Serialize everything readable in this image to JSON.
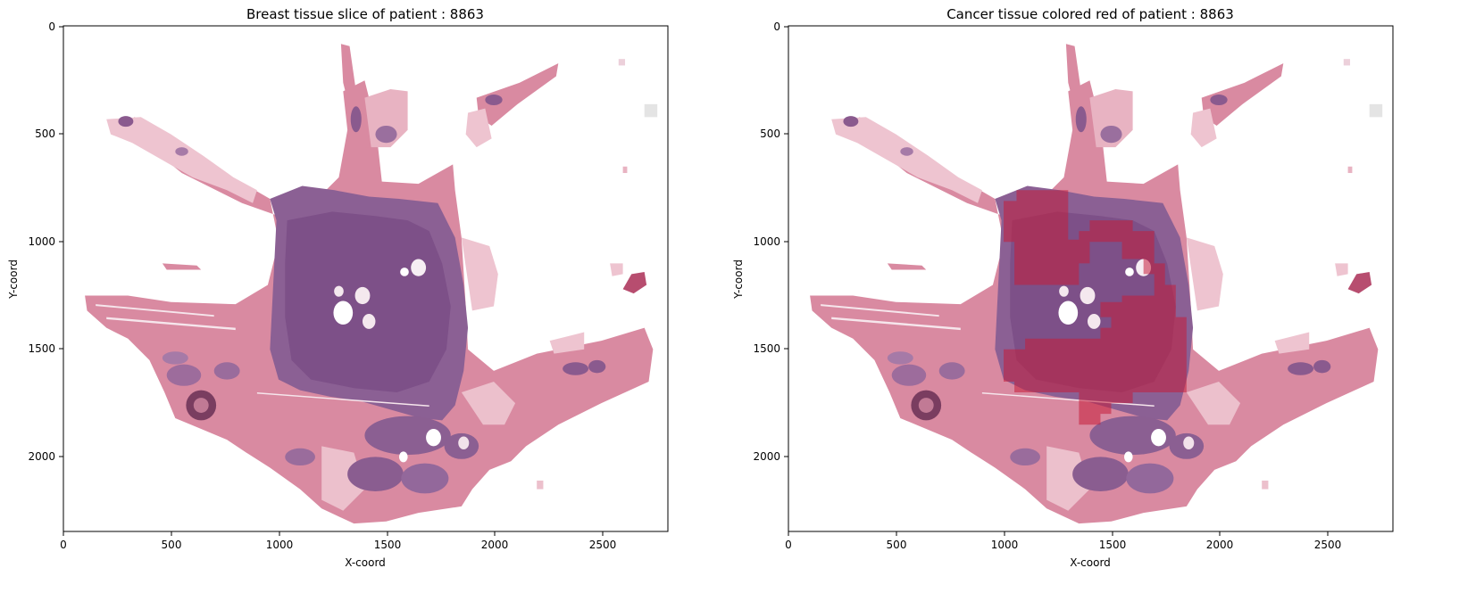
{
  "figure": {
    "panels": [
      {
        "title": "Breast tissue slice of patient : 8863",
        "xlabel": "X-coord",
        "ylabel": "Y-coord",
        "xticks": [
          "0",
          "500",
          "1000",
          "1500",
          "2000",
          "2500"
        ],
        "yticks": [
          "0",
          "500",
          "1000",
          "1500",
          "2000"
        ],
        "xlim": [
          0,
          2800
        ],
        "ylim": [
          2350,
          0
        ],
        "cancer_overlay": false
      },
      {
        "title": "Cancer tissue colored red of patient : 8863",
        "xlabel": "X-coord",
        "ylabel": "Y-coord",
        "xticks": [
          "0",
          "500",
          "1000",
          "1500",
          "2000",
          "2500"
        ],
        "yticks": [
          "0",
          "500",
          "1000",
          "1500",
          "2000"
        ],
        "xlim": [
          0,
          2800
        ],
        "ylim": [
          2350,
          0
        ],
        "cancer_overlay": true
      }
    ],
    "colors": {
      "tissue_pink": "#d9899f",
      "tissue_light": "#eec3cf",
      "tissue_purple": "#8a5f92",
      "tissue_dark": "#6c3f75",
      "cancer_red": "#c41e3a"
    }
  }
}
